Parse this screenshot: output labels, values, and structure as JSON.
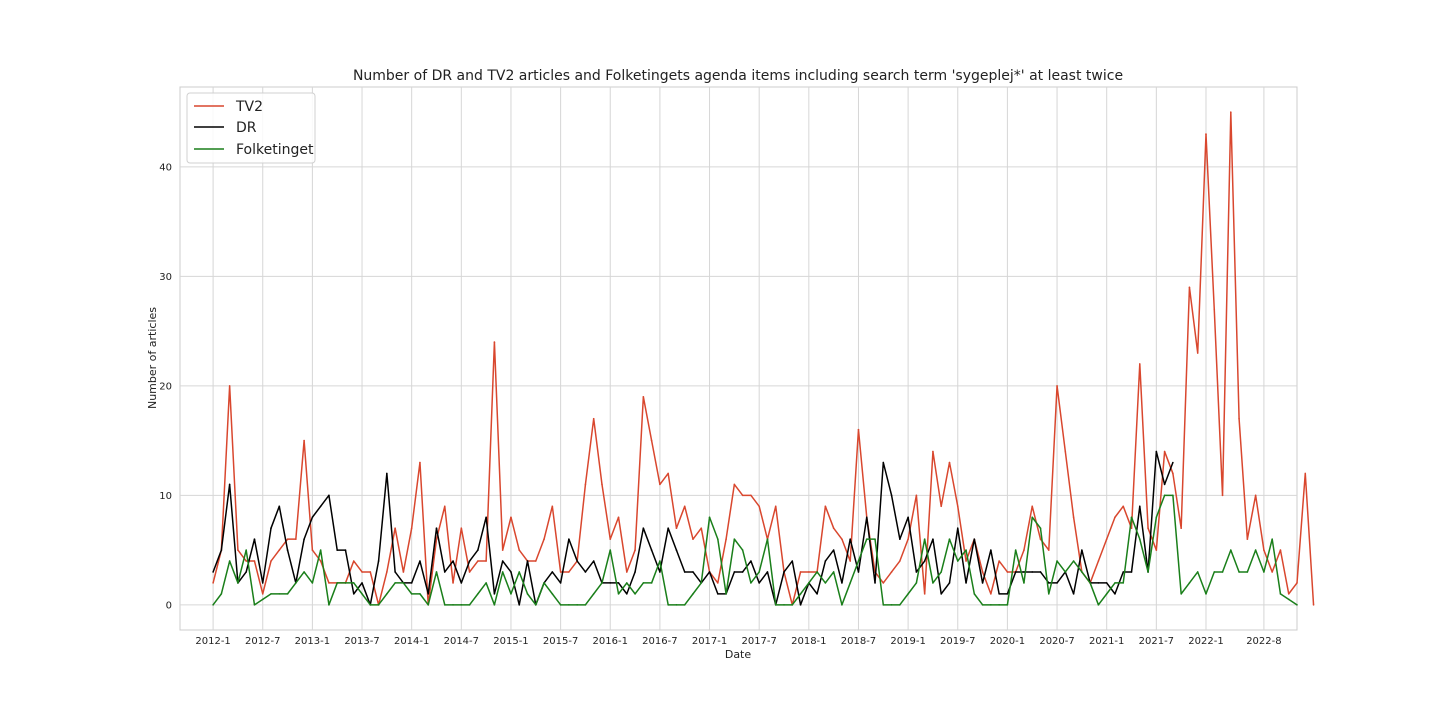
{
  "chart_data": {
    "type": "line",
    "title": "Number of DR and TV2 articles and Folketingets agenda items including search term 'sygeplej*' at least twice",
    "xlabel": "Date",
    "ylabel": "Number of articles",
    "x_start": "2012-1",
    "x_ticks": [
      "2012-1",
      "2012-7",
      "2013-1",
      "2013-7",
      "2014-1",
      "2014-7",
      "2015-1",
      "2015-7",
      "2016-1",
      "2016-7",
      "2017-1",
      "2017-7",
      "2018-1",
      "2018-7",
      "2019-1",
      "2019-7",
      "2020-1",
      "2020-7",
      "2021-1",
      "2021-7",
      "2022-1",
      "2022-8"
    ],
    "y_ticks": [
      0,
      10,
      20,
      30,
      40
    ],
    "ylim": [
      -2.3,
      47.3
    ],
    "xlim": [
      "2011-9",
      "2022-12"
    ],
    "grid": true,
    "legend_position": "top-left",
    "series": [
      {
        "name": "TV2",
        "color": "#d9472e",
        "values": [
          2,
          5,
          20,
          5,
          4,
          4,
          1,
          4,
          5,
          6,
          6,
          15,
          5,
          4,
          2,
          2,
          2,
          4,
          3,
          3,
          0,
          3,
          7,
          3,
          7,
          13,
          0,
          6,
          9,
          2,
          7,
          3,
          4,
          4,
          24,
          5,
          8,
          5,
          4,
          4,
          6,
          9,
          3,
          3,
          4,
          11,
          17,
          11,
          6,
          8,
          3,
          5,
          19,
          15,
          11,
          12,
          7,
          9,
          6,
          7,
          3,
          2,
          6,
          11,
          10,
          10,
          9,
          6,
          9,
          3,
          0,
          3,
          3,
          3,
          9,
          7,
          6,
          4,
          16,
          8,
          3,
          2,
          3,
          4,
          6,
          10,
          1,
          14,
          9,
          13,
          9,
          4,
          6,
          3,
          1,
          4,
          3,
          3,
          5,
          9,
          6,
          5,
          20,
          14,
          8,
          3,
          2,
          4,
          6,
          8,
          9,
          7,
          22,
          7,
          5,
          14,
          12,
          7,
          29,
          23,
          43,
          27,
          10,
          45,
          17,
          6,
          10,
          5,
          3,
          5,
          1,
          2,
          12,
          0
        ],
        "line_end": 135
      },
      {
        "name": "DR",
        "color": "#000000",
        "values": [
          3,
          5,
          11,
          2,
          3,
          6,
          2,
          7,
          9,
          5,
          2,
          6,
          8,
          9,
          10,
          5,
          5,
          1,
          2,
          0,
          4,
          12,
          3,
          2,
          2,
          4,
          1,
          7,
          3,
          4,
          2,
          4,
          5,
          8,
          1,
          4,
          3,
          0,
          4,
          0,
          2,
          3,
          2,
          6,
          4,
          3,
          4,
          2,
          2,
          2,
          1,
          3,
          7,
          5,
          3,
          7,
          5,
          3,
          3,
          2,
          3,
          1,
          1,
          3,
          3,
          4,
          2,
          3,
          0,
          3,
          4,
          0,
          2,
          1,
          4,
          5,
          2,
          6,
          3,
          8,
          2,
          13,
          10,
          6,
          8,
          3,
          4,
          6,
          1,
          2,
          7,
          2,
          6,
          2,
          5,
          1,
          1,
          3,
          3,
          3,
          3,
          2,
          2,
          3,
          1,
          5,
          2,
          2,
          2,
          1,
          3,
          3,
          9,
          3,
          14,
          11,
          13
        ],
        "line_end": 115
      },
      {
        "name": "Folketinget",
        "color": "#1a7f1a",
        "values": [
          0,
          1,
          4,
          2,
          5,
          0,
          0.5,
          1,
          1,
          1,
          2,
          3,
          2,
          5,
          0,
          2,
          2,
          2,
          1,
          0,
          0,
          1,
          2,
          2,
          1,
          1,
          0,
          3,
          0,
          0,
          0,
          0,
          1,
          2,
          0,
          3,
          1,
          3,
          1,
          0,
          2,
          1,
          0,
          0,
          0,
          0,
          1,
          2,
          5,
          1,
          2,
          1,
          2,
          2,
          4,
          0,
          0,
          0,
          1,
          2,
          8,
          6,
          1,
          6,
          5,
          2,
          3,
          6,
          0,
          0,
          0,
          1,
          2,
          3,
          2,
          3,
          0,
          2,
          4,
          6,
          6,
          0,
          0,
          0,
          1,
          2,
          6,
          2,
          3,
          6,
          4,
          5,
          1,
          0,
          0,
          0,
          0,
          5,
          2,
          8,
          7,
          1,
          4,
          3,
          4,
          3,
          2,
          0,
          1,
          2,
          2,
          8,
          6,
          3,
          8,
          10,
          10,
          1,
          2,
          3,
          1,
          3,
          3,
          5,
          3,
          3,
          5,
          3,
          6,
          1,
          0.5,
          0
        ]
      }
    ]
  }
}
